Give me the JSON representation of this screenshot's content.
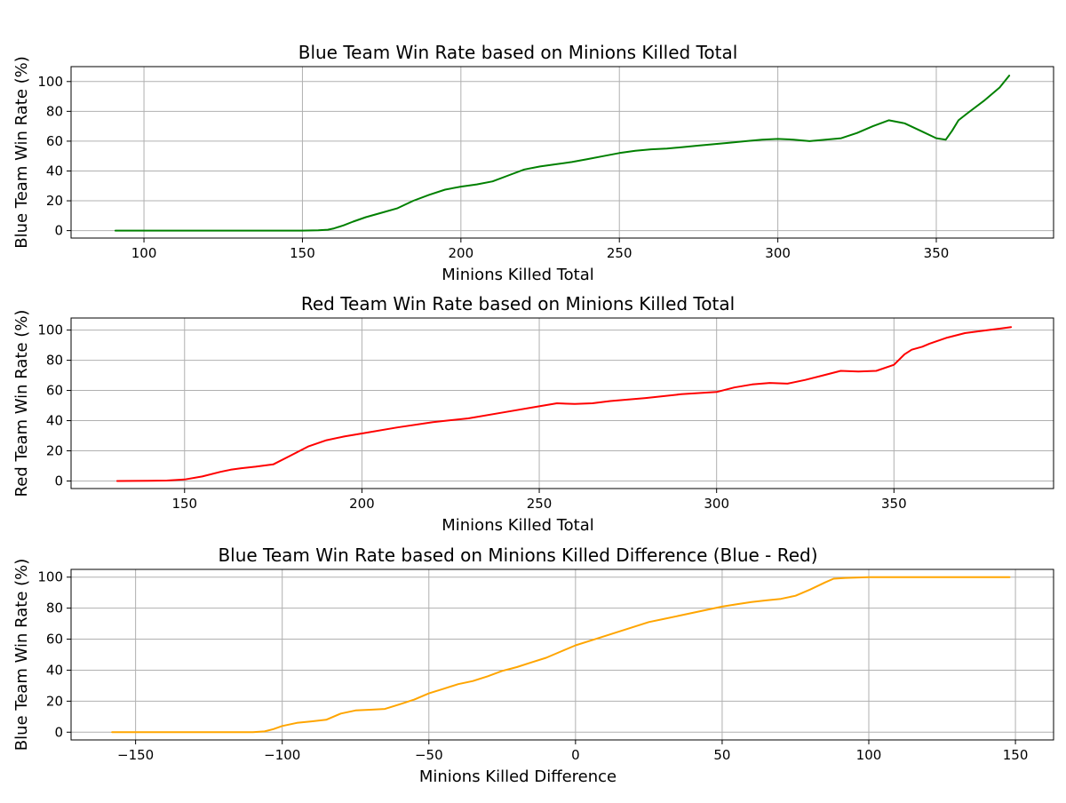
{
  "chart_data": [
    {
      "type": "line",
      "title": "Blue Team Win Rate based on Minions Killed Total",
      "xlabel": "Minions Killed Total",
      "ylabel": "Blue Team Win Rate (%)",
      "xlim": [
        77,
        387
      ],
      "ylim": [
        -5,
        110
      ],
      "xticks": [
        100,
        150,
        200,
        250,
        300,
        350
      ],
      "yticks": [
        0,
        20,
        40,
        60,
        80,
        100
      ],
      "grid": true,
      "color": "#008000",
      "x": [
        91,
        100,
        120,
        140,
        150,
        155,
        158,
        160,
        163,
        166,
        170,
        175,
        180,
        185,
        190,
        195,
        200,
        205,
        210,
        215,
        220,
        225,
        230,
        235,
        240,
        245,
        250,
        255,
        260,
        265,
        270,
        275,
        280,
        285,
        290,
        295,
        300,
        305,
        310,
        315,
        320,
        325,
        330,
        335,
        340,
        345,
        350,
        353,
        355,
        357,
        360,
        365,
        370,
        373
      ],
      "y": [
        0,
        0,
        0,
        0,
        0,
        0.2,
        0.6,
        1.5,
        3.5,
        6,
        9,
        12,
        15,
        20,
        24,
        27.5,
        29.5,
        31,
        33,
        37,
        41,
        43,
        44.5,
        46,
        48,
        50,
        52,
        53.5,
        54.5,
        55,
        56,
        57,
        58,
        59,
        60,
        61,
        61.5,
        61,
        60,
        61,
        62,
        65.5,
        70,
        74,
        72,
        67,
        62,
        61,
        67,
        74,
        79,
        87,
        96,
        104
      ]
    },
    {
      "type": "line",
      "title": "Red Team Win Rate based on Minions Killed Total",
      "xlabel": "Minions Killed Total",
      "ylabel": "Red Team Win Rate (%)",
      "xlim": [
        118,
        395
      ],
      "ylim": [
        -5,
        108
      ],
      "xticks": [
        150,
        200,
        250,
        300,
        350
      ],
      "yticks": [
        0,
        20,
        40,
        60,
        80,
        100
      ],
      "grid": true,
      "color": "#ff0000",
      "x": [
        131,
        140,
        145,
        150,
        155,
        160,
        163,
        166,
        170,
        175,
        180,
        185,
        190,
        195,
        200,
        210,
        220,
        230,
        240,
        250,
        255,
        260,
        265,
        270,
        280,
        290,
        300,
        305,
        310,
        315,
        320,
        325,
        330,
        335,
        340,
        345,
        350,
        353,
        355,
        358,
        360,
        365,
        370,
        375,
        380,
        383
      ],
      "y": [
        0,
        0.1,
        0.3,
        1,
        3,
        6,
        7.5,
        8.5,
        9.5,
        11,
        17,
        23,
        27,
        29.5,
        31.5,
        35.5,
        39,
        41.5,
        45.5,
        49.5,
        51.5,
        51,
        51.5,
        53,
        55,
        57.5,
        59,
        62,
        64,
        65,
        64.5,
        67,
        70,
        73,
        72.5,
        73,
        77,
        84,
        87,
        89,
        91,
        95,
        98,
        99.5,
        101,
        102
      ]
    },
    {
      "type": "line",
      "title": "Blue Team Win Rate based on Minions Killed Difference (Blue - Red)",
      "xlabel": "Minions Killed Difference",
      "ylabel": "Blue Team Win Rate (%)",
      "xlim": [
        -172,
        163
      ],
      "ylim": [
        -5,
        105
      ],
      "xticks": [
        -150,
        -100,
        -50,
        0,
        50,
        100,
        150
      ],
      "yticks": [
        0,
        20,
        40,
        60,
        80,
        100
      ],
      "grid": true,
      "color": "#ffa500",
      "x": [
        -158,
        -140,
        -120,
        -110,
        -106,
        -103,
        -100,
        -95,
        -90,
        -85,
        -80,
        -75,
        -70,
        -65,
        -60,
        -55,
        -50,
        -45,
        -40,
        -35,
        -30,
        -25,
        -20,
        -15,
        -10,
        -5,
        0,
        5,
        10,
        15,
        20,
        25,
        30,
        35,
        40,
        45,
        50,
        55,
        60,
        65,
        70,
        75,
        80,
        85,
        88,
        92,
        100,
        110,
        120,
        140,
        148
      ],
      "y": [
        0,
        0,
        0,
        0,
        0.5,
        2,
        4,
        6,
        7,
        8,
        12,
        14,
        14.5,
        15,
        18,
        21,
        25,
        28,
        31,
        33,
        36,
        39.5,
        42,
        45,
        48,
        52,
        56,
        59,
        62,
        65,
        68,
        71,
        73,
        75,
        77,
        79,
        81,
        82.5,
        84,
        85,
        86,
        88,
        92,
        96.5,
        99,
        99.5,
        100,
        100,
        100,
        100,
        100
      ]
    }
  ]
}
